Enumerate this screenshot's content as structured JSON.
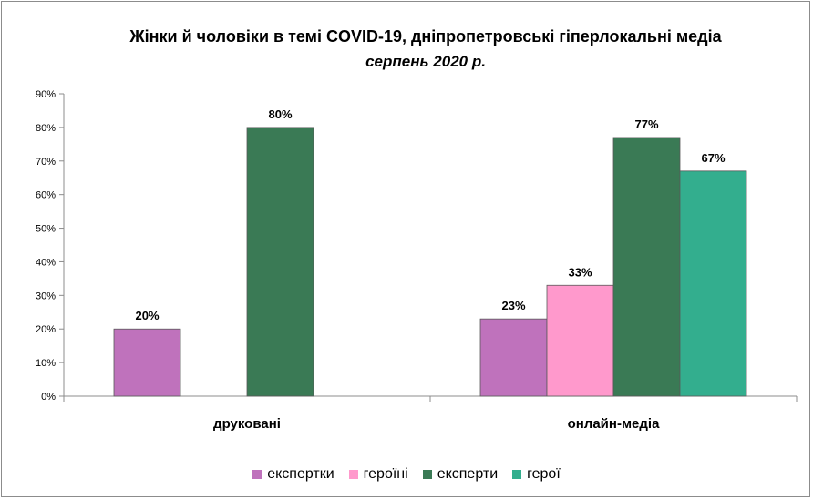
{
  "chart_data": {
    "type": "bar",
    "title": "Жінки й чоловіки  в темі COVID-19,  дніпропетровські  гіперлокальні  медіа",
    "subtitle": "серпень 2020 р.",
    "categories": [
      "друковані",
      "онлайн-медіа"
    ],
    "series": [
      {
        "name": "експертки",
        "color": "#bf72bc",
        "values": [
          20,
          23
        ]
      },
      {
        "name": "героїні",
        "color": "#ff99cc",
        "values": [
          null,
          33
        ]
      },
      {
        "name": "експерти",
        "color": "#3a7a55",
        "values": [
          80,
          77
        ]
      },
      {
        "name": "герої",
        "color": "#33ae8e",
        "values": [
          null,
          67
        ]
      }
    ],
    "ylim": [
      0,
      90
    ],
    "yticks": [
      "0%",
      "10%",
      "20%",
      "30%",
      "40%",
      "50%",
      "60%",
      "70%",
      "80%",
      "90%"
    ],
    "value_suffix": "%",
    "legend_position": "bottom",
    "grid": false
  }
}
